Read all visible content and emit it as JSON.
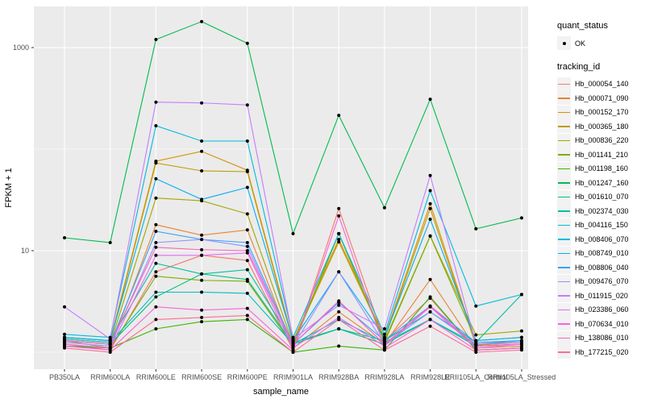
{
  "legend": {
    "quant_status_title": "quant_status",
    "quant_status_items": [
      {
        "label": "OK",
        "marker": "point"
      }
    ],
    "tracking_id_title": "tracking_id"
  },
  "chart_data": {
    "type": "line",
    "title": "",
    "xlabel": "sample_name",
    "ylabel": "FPKM + 1",
    "y_scale": "log10",
    "grid": true,
    "legend_position": "right",
    "panel_background": "#EBEBEB",
    "gridline_color": "#FFFFFF",
    "tick_label_color": "#4D4D4D",
    "axis_title_color": "#000000",
    "marker_color": "#000000",
    "ylim": [
      0.68,
      2540
    ],
    "y_axis_ticks": [
      {
        "label": "10",
        "value": 10
      },
      {
        "label": "1000",
        "value": 1000
      }
    ],
    "y_minor_gridlines": [
      1,
      100
    ],
    "categories": [
      "PB350LA",
      "RRIM600LA",
      "RRIM600LE",
      "RRIM600SE",
      "RRIM600PE",
      "RRIM901LA",
      "RRIM928BA",
      "RRIM928LA",
      "RRIM928LE",
      "RRII105LA_Control",
      "RRII105LA_Stressed"
    ],
    "series": [
      {
        "name": "Hb_000054_140",
        "color": "#F8766D",
        "values": [
          1.2,
          1.05,
          6.2,
          9.0,
          8.0,
          1.05,
          26,
          1.3,
          3.4,
          1.05,
          1.1
        ]
      },
      {
        "name": "Hb_000071_090",
        "color": "#EA8331",
        "values": [
          1.3,
          1.1,
          18,
          14.2,
          16,
          1.1,
          2.5,
          1.2,
          5.2,
          1.1,
          1.15
        ]
      },
      {
        "name": "Hb_000152_170",
        "color": "#D89000",
        "values": [
          1.4,
          1.3,
          76,
          95,
          62,
          1.3,
          12.9,
          1.4,
          29,
          1.2,
          1.3
        ]
      },
      {
        "name": "Hb_000365_180",
        "color": "#C09B00",
        "values": [
          1.35,
          1.25,
          73,
          61,
          60,
          1.25,
          12.2,
          1.35,
          26,
          1.17,
          1.25
        ]
      },
      {
        "name": "Hb_000836_220",
        "color": "#A3A500",
        "values": [
          1.3,
          1.2,
          33,
          31,
          23,
          1.2,
          14.7,
          1.3,
          14,
          1.48,
          1.62
        ]
      },
      {
        "name": "Hb_001141_210",
        "color": "#7CAE00",
        "values": [
          1.2,
          1.1,
          5.6,
          5.1,
          5.0,
          1.15,
          14.7,
          1.25,
          13.9,
          1.3,
          1.4
        ]
      },
      {
        "name": "Hb_001198_160",
        "color": "#39B600",
        "values": [
          1.15,
          1.1,
          1.7,
          2.0,
          2.1,
          1.0,
          1.15,
          1.05,
          3.5,
          1.05,
          1.1
        ]
      },
      {
        "name": "Hb_001247_160",
        "color": "#00BB4E",
        "values": [
          13.4,
          12,
          1200,
          1800,
          1100,
          14.7,
          215,
          26.5,
          310,
          16.4,
          21
        ]
      },
      {
        "name": "Hb_001610_070",
        "color": "#00BF7D",
        "values": [
          1.3,
          1.2,
          3.5,
          5.9,
          5.2,
          1.2,
          1.7,
          1.2,
          2.1,
          1.15,
          1.2
        ]
      },
      {
        "name": "Hb_002374_030",
        "color": "#00C1A3",
        "values": [
          1.4,
          1.3,
          7.5,
          5.9,
          6.5,
          1.25,
          1.7,
          1.3,
          2.5,
          1.25,
          3.7
        ]
      },
      {
        "name": "Hb_004116_150",
        "color": "#00BFC4",
        "values": [
          1.35,
          1.25,
          3.9,
          3.9,
          3.8,
          1.2,
          2.1,
          1.25,
          2.1,
          1.2,
          1.3
        ]
      },
      {
        "name": "Hb_008406_070",
        "color": "#00BAE0",
        "values": [
          1.5,
          1.4,
          170,
          120,
          120,
          1.4,
          14.7,
          1.5,
          39,
          2.85,
          3.7
        ]
      },
      {
        "name": "Hb_008749_010",
        "color": "#00B0F6",
        "values": [
          1.4,
          1.3,
          51,
          32,
          42,
          1.3,
          6.2,
          1.4,
          20.4,
          1.3,
          1.4
        ]
      },
      {
        "name": "Hb_008806_040",
        "color": "#35A2FF",
        "values": [
          1.3,
          1.2,
          15.5,
          12.9,
          12,
          1.2,
          3.1,
          1.3,
          2.85,
          1.25,
          1.3
        ]
      },
      {
        "name": "Hb_009476_070",
        "color": "#9590FF",
        "values": [
          1.25,
          1.15,
          12,
          12.9,
          11,
          1.15,
          6.2,
          1.2,
          2.5,
          1.2,
          1.25
        ]
      },
      {
        "name": "Hb_011915_020",
        "color": "#C77CFF",
        "values": [
          2.8,
          1.35,
          290,
          285,
          272,
          1.35,
          2.9,
          1.7,
          55,
          1.2,
          1.25
        ]
      },
      {
        "name": "Hb_023386_060",
        "color": "#E76BF3",
        "values": [
          1.2,
          1.1,
          9.0,
          9.0,
          9.5,
          1.1,
          2.2,
          1.15,
          2.8,
          1.1,
          1.2
        ]
      },
      {
        "name": "Hb_070634_010",
        "color": "#FA62DB",
        "values": [
          1.15,
          1.05,
          2.8,
          2.6,
          2.7,
          1.05,
          22,
          1.1,
          2.1,
          1.05,
          1.1
        ]
      },
      {
        "name": "Hb_138086_010",
        "color": "#FF62BC",
        "values": [
          1.3,
          1.2,
          10.8,
          10.2,
          10,
          1.2,
          3.2,
          1.2,
          2.85,
          1.15,
          1.2
        ]
      },
      {
        "name": "Hb_177215_020",
        "color": "#FF6A98",
        "values": [
          1.1,
          1.0,
          2.1,
          2.2,
          2.3,
          1.0,
          2.1,
          1.05,
          1.8,
          1.0,
          1.05
        ]
      }
    ]
  }
}
